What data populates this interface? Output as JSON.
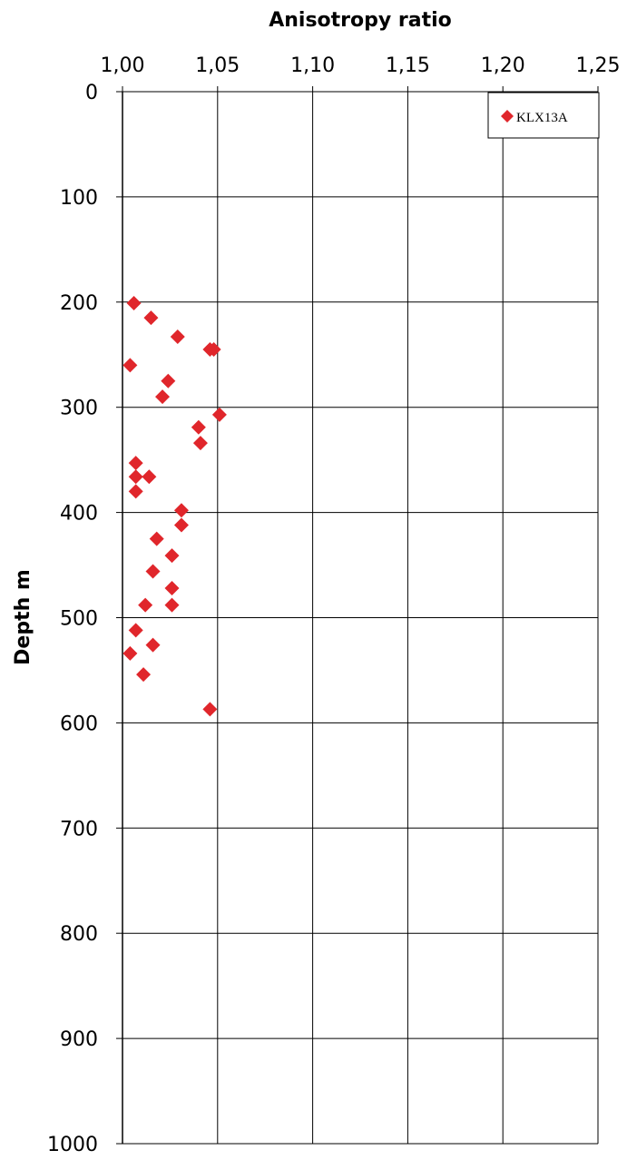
{
  "chart_data": {
    "type": "scatter",
    "title": "",
    "xlabel": "Anisotropy ratio",
    "ylabel": "Depth m",
    "xlim": [
      1.0,
      1.25
    ],
    "ylim": [
      0,
      1000
    ],
    "x_axis_position": "top",
    "y_axis_inverted": true,
    "x_ticks": [
      "1,00",
      "1,05",
      "1,10",
      "1,15",
      "1,20",
      "1,25"
    ],
    "y_ticks": [
      "0",
      "100",
      "200",
      "300",
      "400",
      "500",
      "600",
      "700",
      "800",
      "900",
      "1000"
    ],
    "grid": true,
    "legend_position": "top-right",
    "series": [
      {
        "name": "KLX13A",
        "color": "#e0262b",
        "marker": "diamond",
        "points": [
          {
            "x": 1.006,
            "y": 201
          },
          {
            "x": 1.015,
            "y": 215
          },
          {
            "x": 1.029,
            "y": 233
          },
          {
            "x": 1.046,
            "y": 245
          },
          {
            "x": 1.048,
            "y": 245
          },
          {
            "x": 1.004,
            "y": 260
          },
          {
            "x": 1.024,
            "y": 275
          },
          {
            "x": 1.021,
            "y": 290
          },
          {
            "x": 1.051,
            "y": 307
          },
          {
            "x": 1.04,
            "y": 319
          },
          {
            "x": 1.041,
            "y": 334
          },
          {
            "x": 1.007,
            "y": 353
          },
          {
            "x": 1.007,
            "y": 366
          },
          {
            "x": 1.014,
            "y": 366
          },
          {
            "x": 1.007,
            "y": 380
          },
          {
            "x": 1.031,
            "y": 398
          },
          {
            "x": 1.031,
            "y": 412
          },
          {
            "x": 1.018,
            "y": 425
          },
          {
            "x": 1.026,
            "y": 441
          },
          {
            "x": 1.016,
            "y": 456
          },
          {
            "x": 1.026,
            "y": 472
          },
          {
            "x": 1.012,
            "y": 488
          },
          {
            "x": 1.026,
            "y": 488
          },
          {
            "x": 1.007,
            "y": 512
          },
          {
            "x": 1.016,
            "y": 526
          },
          {
            "x": 1.004,
            "y": 534
          },
          {
            "x": 1.011,
            "y": 554
          },
          {
            "x": 1.046,
            "y": 587
          }
        ]
      }
    ]
  }
}
